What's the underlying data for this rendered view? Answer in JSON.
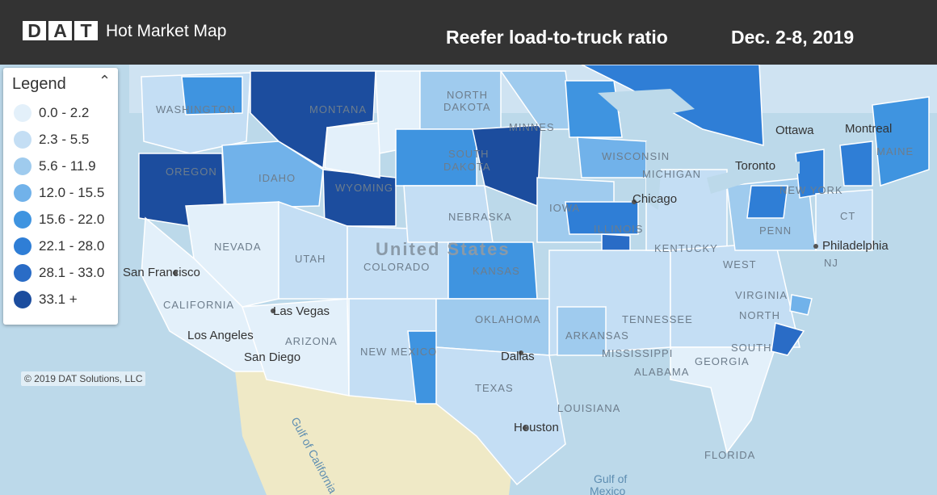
{
  "header": {
    "logo_letters": [
      "D",
      "A",
      "T"
    ],
    "app_title": "Hot Market Map",
    "map_title": "Reefer load-to-truck ratio",
    "date_range": "Dec. 2-8, 2019"
  },
  "legend": {
    "title": "Legend",
    "collapse_icon": "chevron-up-icon",
    "items": [
      {
        "range": "0.0 - 2.2",
        "color": "#e3f0fa"
      },
      {
        "range": "2.3 - 5.5",
        "color": "#c4def4"
      },
      {
        "range": "5.6 - 11.9",
        "color": "#9fcbee"
      },
      {
        "range": "12.0 - 15.5",
        "color": "#71b2ea"
      },
      {
        "range": "15.6 - 22.0",
        "color": "#3f94e0"
      },
      {
        "range": "22.1 - 28.0",
        "color": "#2f7ed6"
      },
      {
        "range": "28.1 - 33.0",
        "color": "#2a6cc6"
      },
      {
        "range": "33.1 +",
        "color": "#1c4d9e"
      }
    ]
  },
  "map": {
    "country_label": "United States",
    "states": [
      "WASHINGTON",
      "OREGON",
      "IDAHO",
      "MONTANA",
      "WYOMING",
      "NEVADA",
      "UTAH",
      "COLORADO",
      "CALIFORNIA",
      "ARIZONA",
      "NEW MEXICO",
      "NORTH DAKOTA",
      "SOUTH DAKOTA",
      "NEBRASKA",
      "KANSAS",
      "OKLAHOMA",
      "TEXAS",
      "MINNESOTA",
      "IOWA",
      "WISCONSIN",
      "MICHIGAN",
      "ILLINOIS",
      "ARKANSAS",
      "MISSISSIPPI",
      "ALABAMA",
      "LOUISIANA",
      "TENNESSEE",
      "KENTUCKY",
      "WEST",
      "VIRGINIA",
      "NORTH",
      "SOUTH",
      "GEORGIA",
      "FLORIDA",
      "PENN",
      "NEW YORK",
      "NJ",
      "CT",
      "MAINE"
    ],
    "cities": [
      "San Francisco",
      "Las Vegas",
      "Los Angeles",
      "San Diego",
      "Dallas",
      "Houston",
      "Chicago",
      "Toronto",
      "Philadelphia",
      "Ottawa",
      "Montreal"
    ],
    "water": [
      "Gulf of California",
      "Gulf of",
      "Mexico"
    ],
    "copyright": "© 2019 DAT Solutions, LLC"
  }
}
